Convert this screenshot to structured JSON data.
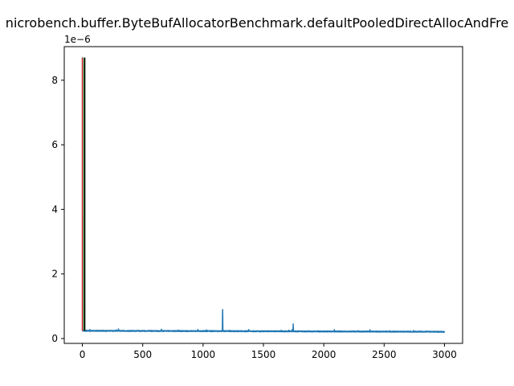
{
  "chart_data": {
    "type": "line",
    "title": "nicrobench.buffer.ByteBufAllocatorBenchmark.defaultPooledDirectAllocAndFre",
    "xlabel": "",
    "ylabel": "",
    "y_offset_label": "1e−6",
    "xlim": [
      -150,
      3150
    ],
    "ylim": [
      -1.5e-07,
      9.04e-06
    ],
    "x_ticks": [
      0,
      500,
      1000,
      1500,
      2000,
      2500,
      3000
    ],
    "x_tick_labels": [
      "0",
      "500",
      "1000",
      "1500",
      "2000",
      "2500",
      "3000"
    ],
    "y_ticks": [
      0,
      2e-06,
      4e-06,
      6e-06,
      8e-06
    ],
    "y_tick_labels": [
      "0",
      "2",
      "4",
      "6",
      "8"
    ],
    "grid": false,
    "series": [
      {
        "color": "#1f77b4",
        "baseline": 2.4e-07,
        "n_points": 3000,
        "x": [
          0,
          1,
          2,
          3,
          20,
          1160,
          1161,
          1162,
          1163,
          1164,
          1745,
          1746,
          1747,
          1748,
          3000
        ],
        "y": [
          8.7e-06,
          8.7e-06,
          3e-07,
          2.8e-07,
          2.7e-07,
          2.5e-07,
          6e-07,
          9e-07,
          7e-07,
          2.5e-07,
          2.5e-07,
          3.5e-07,
          4.5e-07,
          2.5e-07,
          2.1e-07
        ]
      }
    ],
    "vlines": [
      {
        "x": 0,
        "ymin": 2.4e-07,
        "ymax": 8.7e-06,
        "color": "#d62728"
      },
      {
        "x": 14,
        "ymin": 2.4e-07,
        "ymax": 8.7e-06,
        "color": "#2ca02c"
      },
      {
        "x": 20,
        "ymin": 2.4e-07,
        "ymax": 8.7e-06,
        "color": "#000000"
      }
    ]
  }
}
